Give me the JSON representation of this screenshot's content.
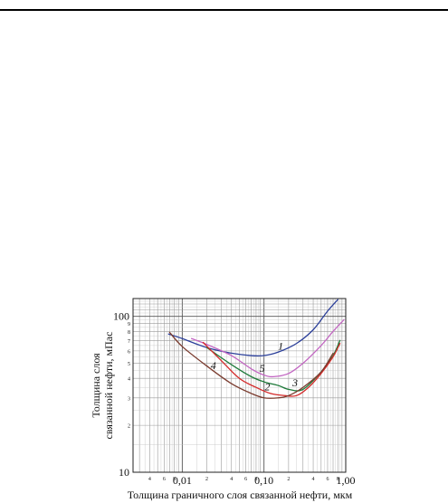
{
  "chart_data": {
    "type": "line",
    "title": "",
    "xlabel": "Толщина граничного слоя связанной нефти, мкм",
    "ylabel_line1": "Толщина слоя",
    "ylabel_line2": "связанной нефти, мПас",
    "x_scale": "log",
    "y_scale": "log",
    "xlim": [
      0.0025,
      1.0
    ],
    "ylim": [
      10,
      130
    ],
    "grid": true,
    "legend": "none",
    "x_major_ticks": [
      {
        "value": 0.01,
        "label": "0,01"
      },
      {
        "value": 0.1,
        "label": "0,10"
      },
      {
        "value": 1.0,
        "label": "1,00"
      }
    ],
    "x_minor_ticks": [
      {
        "value": 0.004,
        "label": "4"
      },
      {
        "value": 0.006,
        "label": "6"
      },
      {
        "value": 0.008,
        "label": "8"
      },
      {
        "value": 0.02,
        "label": "2"
      },
      {
        "value": 0.04,
        "label": "4"
      },
      {
        "value": 0.06,
        "label": "6"
      },
      {
        "value": 0.08,
        "label": "8"
      },
      {
        "value": 0.2,
        "label": "2"
      },
      {
        "value": 0.4,
        "label": "4"
      },
      {
        "value": 0.6,
        "label": "6"
      },
      {
        "value": 0.8,
        "label": "8"
      }
    ],
    "y_major_ticks": [
      {
        "value": 10,
        "label": "10"
      },
      {
        "value": 100,
        "label": "100"
      }
    ],
    "y_minor_ticks": [
      {
        "value": 20,
        "label": "2"
      },
      {
        "value": 30,
        "label": "3"
      },
      {
        "value": 40,
        "label": "4"
      },
      {
        "value": 50,
        "label": "5"
      },
      {
        "value": 60,
        "label": "6"
      },
      {
        "value": 70,
        "label": "7"
      },
      {
        "value": 80,
        "label": "8"
      },
      {
        "value": 90,
        "label": "9"
      }
    ],
    "series": [
      {
        "label": "1",
        "color": "#2b3f9a",
        "x": [
          0.0068,
          0.01,
          0.02,
          0.04,
          0.07,
          0.1,
          0.15,
          0.25,
          0.4,
          0.6,
          0.8
        ],
        "y": [
          77,
          72,
          63,
          58,
          56,
          56,
          59,
          67,
          82,
          108,
          128
        ]
      },
      {
        "label": "5",
        "color": "#c266c2",
        "x": [
          0.013,
          0.02,
          0.04,
          0.07,
          0.1,
          0.13,
          0.2,
          0.3,
          0.5,
          0.7,
          0.95
        ],
        "y": [
          72,
          66,
          56,
          46,
          42,
          41,
          43,
          50,
          65,
          80,
          95
        ]
      },
      {
        "label": "3",
        "color": "#1f7a3a",
        "x": [
          0.02,
          0.04,
          0.07,
          0.1,
          0.15,
          0.2,
          0.3,
          0.5,
          0.7,
          0.85
        ],
        "y": [
          63,
          49,
          41,
          38,
          36,
          34,
          34,
          44,
          56,
          70
        ]
      },
      {
        "label": "2",
        "color": "#d42a2a",
        "x": [
          0.018,
          0.03,
          0.05,
          0.08,
          0.12,
          0.18,
          0.25,
          0.35,
          0.5,
          0.7,
          0.85
        ],
        "y": [
          68,
          52,
          40,
          35,
          32,
          31,
          31,
          35,
          43,
          55,
          67
        ]
      },
      {
        "label": "4",
        "color": "#7a3b2e",
        "x": [
          0.007,
          0.01,
          0.02,
          0.04,
          0.07,
          0.1,
          0.15,
          0.2,
          0.3,
          0.5,
          0.7
        ],
        "y": [
          79,
          64,
          48,
          37,
          32,
          30,
          30,
          31,
          35,
          44,
          58
        ]
      }
    ],
    "curve_labels": [
      {
        "text": "1",
        "x": 0.16,
        "y": 61
      },
      {
        "text": "5",
        "x": 0.095,
        "y": 44
      },
      {
        "text": "3",
        "x": 0.24,
        "y": 35.5
      },
      {
        "text": "2",
        "x": 0.11,
        "y": 33.5
      },
      {
        "text": "4",
        "x": 0.024,
        "y": 46
      }
    ]
  }
}
